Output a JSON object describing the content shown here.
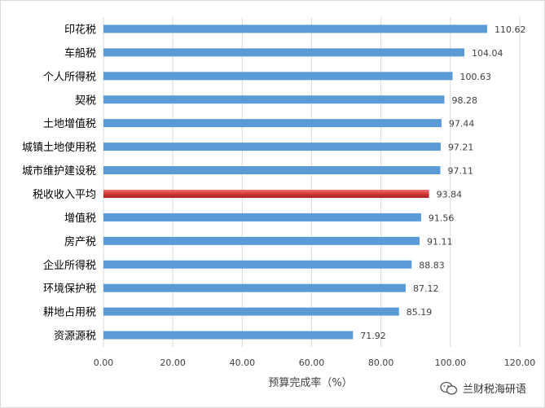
{
  "chart_data": {
    "type": "bar",
    "orientation": "horizontal",
    "categories": [
      "印花税",
      "车船税",
      "个人所得税",
      "契税",
      "土地增值税",
      "城镇土地使用税",
      "城市维护建设税",
      "税收收入平均",
      "增值税",
      "房产税",
      "企业所得税",
      "环境保护税",
      "耕地占用税",
      "资源源税"
    ],
    "values": [
      110.62,
      104.04,
      100.63,
      98.28,
      97.44,
      97.21,
      97.11,
      93.84,
      91.56,
      91.11,
      88.83,
      87.12,
      85.19,
      71.92
    ],
    "value_labels": [
      "110.62",
      "104.04",
      "100.63",
      "98.28",
      "97.44",
      "97.21",
      "97.11",
      "93.84",
      "91.56",
      "91.11",
      "88.83",
      "87.12",
      "85.19",
      "71.92"
    ],
    "highlight_index": 7,
    "xlabel": "预算完成率（%）",
    "xlim": [
      0,
      120
    ],
    "xticks": [
      "0.00",
      "20.00",
      "40.00",
      "60.00",
      "80.00",
      "100.00",
      "120.00"
    ],
    "grid": "vertical",
    "colors": {
      "bar": "#5b9bd5",
      "highlight": "#d63a3a",
      "grid": "#d9d9d9"
    }
  },
  "watermark": {
    "text": "兰财税海研语",
    "icon": "wechat-icon"
  }
}
